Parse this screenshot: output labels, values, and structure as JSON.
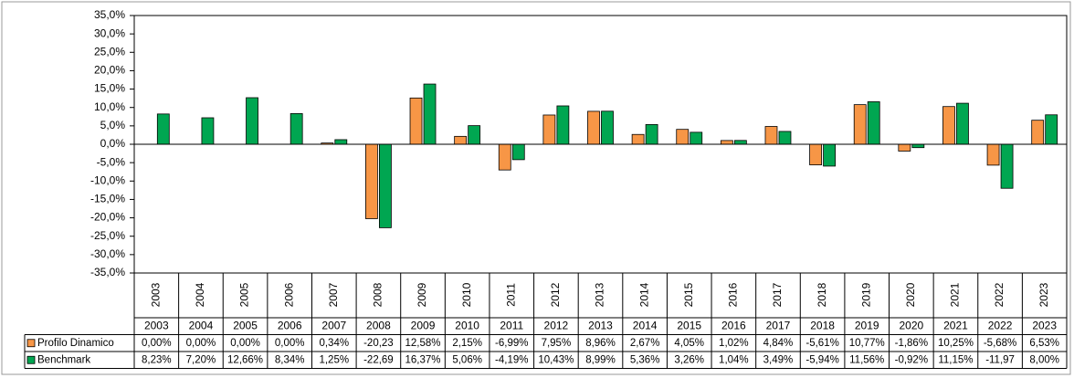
{
  "chart_data": {
    "type": "bar",
    "categories": [
      "2003",
      "2004",
      "2005",
      "2006",
      "2007",
      "2008",
      "2009",
      "2010",
      "2011",
      "2012",
      "2013",
      "2014",
      "2015",
      "2016",
      "2017",
      "2018",
      "2019",
      "2020",
      "2021",
      "2022",
      "2023"
    ],
    "series": [
      {
        "name": "Profilo Dinamico",
        "color": "#f79646",
        "values": [
          0.0,
          0.0,
          0.0,
          0.0,
          0.34,
          -20.23,
          12.58,
          2.15,
          -6.99,
          7.95,
          8.96,
          2.67,
          4.05,
          1.02,
          4.84,
          -5.61,
          10.77,
          -1.86,
          10.25,
          -5.68,
          6.53
        ],
        "value_labels": [
          "0,00%",
          "0,00%",
          "0,00%",
          "0,00%",
          "0,34%",
          "-20,23",
          "12,58%",
          "2,15%",
          "-6,99%",
          "7,95%",
          "8,96%",
          "2,67%",
          "4,05%",
          "1,02%",
          "4,84%",
          "-5,61%",
          "10,77%",
          "-1,86%",
          "10,25%",
          "-5,68%",
          "6,53%"
        ]
      },
      {
        "name": "Benchmark",
        "color": "#00a651",
        "values": [
          8.23,
          7.2,
          12.66,
          8.34,
          1.25,
          -22.69,
          16.37,
          5.06,
          -4.19,
          10.43,
          8.99,
          5.36,
          3.26,
          1.04,
          3.49,
          -5.94,
          11.56,
          -0.92,
          11.15,
          -11.97,
          8.0
        ],
        "value_labels": [
          "8,23%",
          "7,20%",
          "12,66%",
          "8,34%",
          "1,25%",
          "-22,69",
          "16,37%",
          "5,06%",
          "-4,19%",
          "10,43%",
          "8,99%",
          "5,36%",
          "3,26%",
          "1,04%",
          "3,49%",
          "-5,94%",
          "11,56%",
          "-0,92%",
          "11,15%",
          "-11,97",
          "8,00%"
        ]
      }
    ],
    "ylim": [
      -35,
      35
    ],
    "yticks": [
      {
        "value": -35,
        "label": "-35,0%"
      },
      {
        "value": -30,
        "label": "-30,0%"
      },
      {
        "value": -25,
        "label": "-25,0%"
      },
      {
        "value": -20,
        "label": "-20,0%"
      },
      {
        "value": -15,
        "label": "-15,0%"
      },
      {
        "value": -10,
        "label": "-10,0%"
      },
      {
        "value": -5,
        "label": "-5,0%"
      },
      {
        "value": 0,
        "label": "0,0%"
      },
      {
        "value": 5,
        "label": "5,0%"
      },
      {
        "value": 10,
        "label": "10,0%"
      },
      {
        "value": 15,
        "label": "15,0%"
      },
      {
        "value": 20,
        "label": "20,0%"
      },
      {
        "value": 25,
        "label": "25,0%"
      },
      {
        "value": 30,
        "label": "30,0%"
      },
      {
        "value": 35,
        "label": "35,0%"
      }
    ],
    "grid": false
  }
}
